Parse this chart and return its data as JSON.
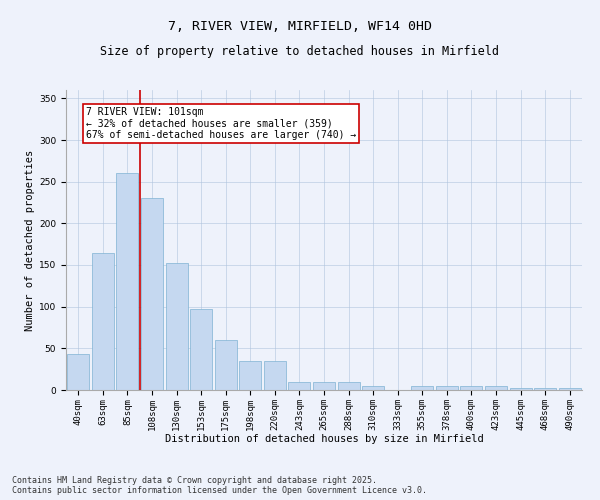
{
  "title_line1": "7, RIVER VIEW, MIRFIELD, WF14 0HD",
  "title_line2": "Size of property relative to detached houses in Mirfield",
  "xlabel": "Distribution of detached houses by size in Mirfield",
  "ylabel": "Number of detached properties",
  "categories": [
    "40sqm",
    "63sqm",
    "85sqm",
    "108sqm",
    "130sqm",
    "153sqm",
    "175sqm",
    "198sqm",
    "220sqm",
    "243sqm",
    "265sqm",
    "288sqm",
    "310sqm",
    "333sqm",
    "355sqm",
    "378sqm",
    "400sqm",
    "423sqm",
    "445sqm",
    "468sqm",
    "490sqm"
  ],
  "values": [
    43,
    165,
    260,
    230,
    153,
    97,
    60,
    35,
    35,
    10,
    10,
    10,
    5,
    0,
    5,
    5,
    5,
    5,
    2,
    2,
    2
  ],
  "bar_color": "#c5d8f0",
  "bar_edge_color": "#7fb3d3",
  "vline_x": 2.5,
  "vline_color": "#cc0000",
  "annotation_box_text": "7 RIVER VIEW: 101sqm\n← 32% of detached houses are smaller (359)\n67% of semi-detached houses are larger (740) →",
  "ylim": [
    0,
    360
  ],
  "yticks": [
    0,
    50,
    100,
    150,
    200,
    250,
    300,
    350
  ],
  "background_color": "#eef2fb",
  "plot_bg_color": "#eef2fb",
  "footer_text": "Contains HM Land Registry data © Crown copyright and database right 2025.\nContains public sector information licensed under the Open Government Licence v3.0.",
  "title_fontsize": 9.5,
  "subtitle_fontsize": 8.5,
  "axis_label_fontsize": 7.5,
  "tick_fontsize": 6.5,
  "annotation_fontsize": 7,
  "footer_fontsize": 6
}
